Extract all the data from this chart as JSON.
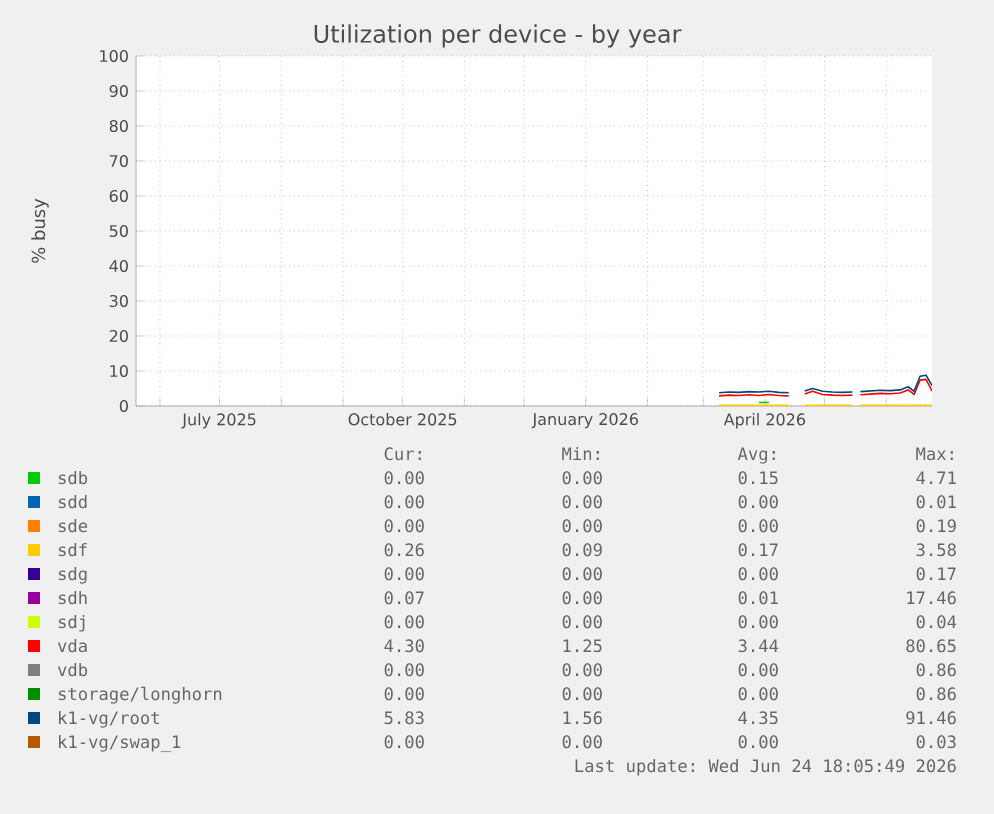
{
  "chart_data": {
    "type": "line",
    "title": "Utilization per device - by year",
    "ylabel": "% busy",
    "x": [
      "2026-03-09",
      "2026-03-14",
      "2026-03-19",
      "2026-03-24",
      "2026-03-29",
      "2026-04-03",
      "2026-04-08",
      "2026-04-13",
      "2026-04-17",
      "2026-04-21",
      "2026-04-25",
      "2026-04-30",
      "2026-05-05",
      "2026-05-10",
      "2026-05-15",
      "2026-05-17",
      "2026-05-19",
      "2026-05-24",
      "2026-05-29",
      "2026-06-03",
      "2026-06-08",
      "2026-06-12",
      "2026-06-15",
      "2026-06-18",
      "2026-06-21",
      "2026-06-24"
    ],
    "xlim": [
      "2025-05-20",
      "2026-06-24"
    ],
    "xticks": [
      {
        "value": "2025-06-01",
        "label": null
      },
      {
        "value": "2025-07-01",
        "label": "July 2025"
      },
      {
        "value": "2025-08-01",
        "label": null
      },
      {
        "value": "2025-09-01",
        "label": null
      },
      {
        "value": "2025-10-01",
        "label": "October 2025"
      },
      {
        "value": "2025-11-01",
        "label": null
      },
      {
        "value": "2025-12-01",
        "label": null
      },
      {
        "value": "2026-01-01",
        "label": "January 2026"
      },
      {
        "value": "2026-02-01",
        "label": null
      },
      {
        "value": "2026-03-01",
        "label": null
      },
      {
        "value": "2026-04-01",
        "label": "April 2026"
      },
      {
        "value": "2026-05-01",
        "label": null
      },
      {
        "value": "2026-06-01",
        "label": null
      }
    ],
    "ylim": [
      0,
      100
    ],
    "yticks": [
      0,
      10,
      20,
      30,
      40,
      50,
      60,
      70,
      80,
      90,
      100
    ],
    "grid": true,
    "legend": "bottom",
    "series": [
      {
        "name": "sdb",
        "color": "#00cc00",
        "values": [
          null,
          null,
          null,
          null,
          1.0,
          1.0,
          null,
          null,
          null,
          null,
          null,
          null,
          null,
          null,
          null,
          null,
          null,
          null,
          null,
          null,
          null,
          null,
          null,
          null,
          null,
          null
        ]
      },
      {
        "name": "sdd",
        "color": "#0066b3",
        "values": [
          null,
          null,
          null,
          null,
          null,
          null,
          null,
          null,
          null,
          null,
          null,
          null,
          null,
          null,
          null,
          null,
          null,
          null,
          null,
          null,
          null,
          null,
          null,
          null,
          null,
          null
        ]
      },
      {
        "name": "sde",
        "color": "#ff8000",
        "values": [
          null,
          null,
          null,
          null,
          null,
          null,
          null,
          null,
          null,
          null,
          null,
          null,
          null,
          null,
          null,
          null,
          null,
          null,
          null,
          null,
          null,
          null,
          null,
          null,
          null,
          null
        ]
      },
      {
        "name": "sdf",
        "color": "#ffcc00",
        "values": [
          0.2,
          0.2,
          0.2,
          0.2,
          0.2,
          0.2,
          0.2,
          0.2,
          null,
          0.2,
          0.2,
          0.2,
          0.2,
          0.2,
          0.2,
          null,
          0.2,
          0.2,
          0.2,
          0.2,
          0.2,
          0.2,
          0.2,
          0.2,
          0.2,
          0.2
        ]
      },
      {
        "name": "sdg",
        "color": "#330099",
        "values": [
          null,
          null,
          null,
          null,
          null,
          null,
          null,
          null,
          null,
          null,
          null,
          null,
          null,
          null,
          null,
          null,
          null,
          null,
          null,
          null,
          null,
          null,
          null,
          null,
          null,
          null
        ]
      },
      {
        "name": "sdh",
        "color": "#990099",
        "values": [
          null,
          null,
          null,
          null,
          null,
          null,
          null,
          null,
          null,
          null,
          null,
          null,
          null,
          null,
          null,
          null,
          null,
          null,
          null,
          null,
          null,
          null,
          null,
          null,
          null,
          null
        ]
      },
      {
        "name": "sdj",
        "color": "#ccff00",
        "values": [
          null,
          null,
          null,
          null,
          null,
          null,
          null,
          null,
          null,
          null,
          null,
          null,
          null,
          null,
          null,
          null,
          null,
          null,
          null,
          null,
          null,
          null,
          null,
          null,
          null,
          null
        ]
      },
      {
        "name": "vda",
        "color": "#ff0000",
        "values": [
          2.9,
          3.1,
          3.0,
          3.2,
          3.0,
          3.3,
          3.0,
          2.9,
          null,
          3.4,
          4.2,
          3.3,
          3.1,
          3.0,
          3.1,
          null,
          3.2,
          3.4,
          3.6,
          3.5,
          3.7,
          4.6,
          3.3,
          7.4,
          7.6,
          4.3
        ]
      },
      {
        "name": "vdb",
        "color": "#808080",
        "values": [
          null,
          null,
          null,
          null,
          null,
          null,
          null,
          null,
          null,
          null,
          null,
          null,
          null,
          null,
          null,
          null,
          null,
          null,
          null,
          null,
          null,
          null,
          null,
          null,
          null,
          null
        ]
      },
      {
        "name": "storage/longhorn",
        "color": "#008f00",
        "values": [
          null,
          null,
          null,
          null,
          null,
          null,
          null,
          null,
          null,
          null,
          null,
          null,
          null,
          null,
          null,
          null,
          null,
          null,
          null,
          null,
          null,
          null,
          null,
          null,
          null,
          null
        ]
      },
      {
        "name": "k1-vg/root",
        "color": "#00487d",
        "values": [
          3.8,
          4.0,
          3.9,
          4.1,
          4.0,
          4.2,
          3.9,
          3.8,
          null,
          4.3,
          5.0,
          4.2,
          4.0,
          3.9,
          4.0,
          null,
          4.1,
          4.3,
          4.5,
          4.4,
          4.6,
          5.5,
          4.2,
          8.5,
          8.8,
          5.8
        ]
      },
      {
        "name": "k1-vg/swap_1",
        "color": "#b35a00",
        "values": [
          null,
          null,
          null,
          null,
          null,
          null,
          null,
          null,
          null,
          null,
          null,
          null,
          null,
          null,
          null,
          null,
          null,
          null,
          null,
          null,
          null,
          null,
          null,
          null,
          null,
          null
        ]
      }
    ],
    "annotations": [
      "Cur:",
      "Min:",
      "Avg:",
      "Max:",
      "0.00",
      "0.00",
      "0.15",
      "4.71",
      "0.00",
      "0.00",
      "0.00",
      "0.01",
      "0.00",
      "0.00",
      "0.00",
      "0.19",
      "0.26",
      "0.09",
      "0.17",
      "3.58",
      "0.00",
      "0.00",
      "0.00",
      "0.17",
      "0.07",
      "0.00",
      "0.01",
      "17.46",
      "0.00",
      "0.00",
      "0.00",
      "0.04",
      "4.30",
      "1.25",
      "3.44",
      "80.65",
      "0.00",
      "0.00",
      "0.00",
      "0.86",
      "0.00",
      "0.00",
      "0.00",
      "0.86",
      "5.83",
      "1.56",
      "4.35",
      "91.46",
      "0.00",
      "0.00",
      "0.00",
      "0.03",
      "Last update: Wed Jun 24 18:05:49 2026"
    ]
  }
}
